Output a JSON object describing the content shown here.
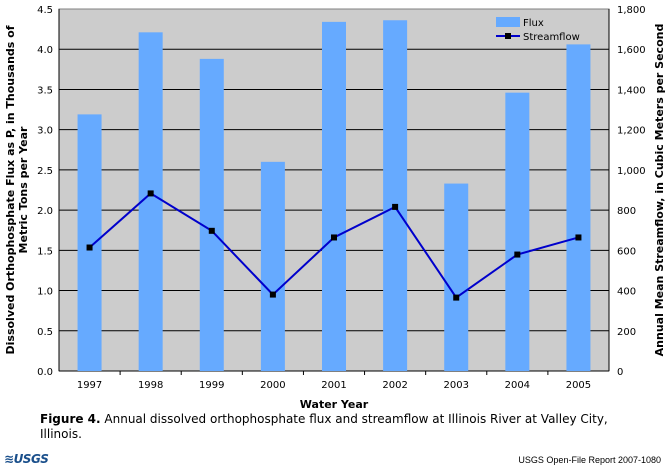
{
  "chart_data": {
    "type": "bar+line",
    "categories": [
      "1997",
      "1998",
      "1999",
      "2000",
      "2001",
      "2002",
      "2003",
      "2004",
      "2005"
    ],
    "series": [
      {
        "name": "Flux",
        "type": "bar",
        "axis": "left",
        "values": [
          3.19,
          4.21,
          3.88,
          2.6,
          4.34,
          4.36,
          2.33,
          3.46,
          4.06
        ],
        "color": "#66aaff"
      },
      {
        "name": "Streamflow",
        "type": "line",
        "axis": "right",
        "values": [
          614,
          883,
          697,
          380,
          664,
          816,
          365,
          579,
          664
        ],
        "color": "#0000cc"
      }
    ],
    "xlabel": "Water Year",
    "ylabel": "Dissolved Orthophosphate Flux as P, in Thousands of Metric Tons per Year",
    "ylabel_lines": [
      "Dissolved Orthophosphate Flux as P, in Thousands of",
      "Metric Tons per Year"
    ],
    "y2label": "Annual Mean Streamflow, in Cubic Meters per Second",
    "ylim": [
      0,
      4.5
    ],
    "y2lim": [
      0,
      1800
    ],
    "yticks": [
      "0.0",
      "0.5",
      "1.0",
      "1.5",
      "2.0",
      "2.5",
      "3.0",
      "3.5",
      "4.0",
      "4.5"
    ],
    "y2ticks": [
      "0",
      "200",
      "400",
      "600",
      "800",
      "1,000",
      "1,200",
      "1,400",
      "1,600",
      "1,800"
    ],
    "grid": true,
    "legend": "top-right",
    "plot_bg": "#cccccc"
  },
  "caption": {
    "label": "Figure 4.",
    "text": " Annual dissolved orthophosphate flux and streamflow at Illinois River at Valley City, Illinois."
  },
  "footer": {
    "logo": "USGS",
    "report": "USGS Open-File Report 2007-1080"
  }
}
